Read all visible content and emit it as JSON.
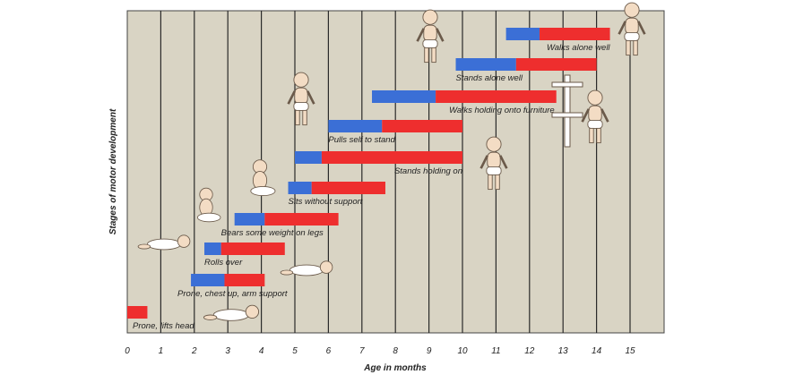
{
  "chart_data": {
    "type": "bar",
    "subtype": "range-bars",
    "title": "",
    "xlabel": "Age in months",
    "ylabel": "Stages of motor development",
    "xlim": [
      0,
      16
    ],
    "x_ticks": [
      "0",
      "1",
      "2",
      "3",
      "4",
      "5",
      "6",
      "7",
      "8",
      "9",
      "10",
      "11",
      "12",
      "13",
      "14",
      "15"
    ],
    "colors": {
      "early": "#3b6fd6",
      "typical": "#ee2e2e",
      "background": "#d9d4c4",
      "grid": "#2a2a2a"
    },
    "milestones": [
      {
        "label": "Prone, lifts head",
        "start": 0,
        "mid": 0,
        "end": 0.6
      },
      {
        "label": "Prone, chest up, arm support",
        "start": 1.9,
        "mid": 2.9,
        "end": 4.1
      },
      {
        "label": "Rolls over",
        "start": 2.3,
        "mid": 2.8,
        "end": 4.7
      },
      {
        "label": "Bears some weight on legs",
        "start": 3.2,
        "mid": 4.1,
        "end": 6.3
      },
      {
        "label": "Sits without support",
        "start": 4.8,
        "mid": 5.5,
        "end": 7.7
      },
      {
        "label": "Stands holding on",
        "start": 5.0,
        "mid": 5.8,
        "end": 10.0
      },
      {
        "label": "Pulls self to stand",
        "start": 6.0,
        "mid": 7.6,
        "end": 10.0
      },
      {
        "label": "Walks holding onto furniture",
        "start": 7.3,
        "mid": 9.2,
        "end": 12.8
      },
      {
        "label": "Stands alone well",
        "start": 9.8,
        "mid": 11.6,
        "end": 14.0
      },
      {
        "label": "Walks alone well",
        "start": 11.3,
        "mid": 12.3,
        "end": 14.4
      }
    ]
  }
}
